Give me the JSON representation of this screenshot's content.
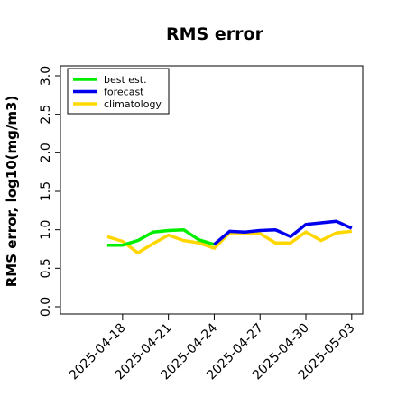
{
  "chart_data": {
    "type": "line",
    "title": "RMS error",
    "xlabel": "",
    "ylabel": "RMS error, log10(mg/m3)",
    "ylim": [
      0.0,
      3.0
    ],
    "yticks": [
      "0.0",
      "0.5",
      "1.0",
      "1.5",
      "2.0",
      "2.5",
      "3.0"
    ],
    "xtick_labels": [
      {
        "label": "2025-04-18",
        "day": 2,
        "color": "#000000"
      },
      {
        "label": "2025-04-21",
        "day": 5,
        "color": "#000000"
      },
      {
        "label": "2025-04-24",
        "day": 8,
        "color": "#008000"
      },
      {
        "label": "2025-04-27",
        "day": 11,
        "color": "#000000"
      },
      {
        "label": "2025-04-30",
        "day": 14,
        "color": "#000000"
      },
      {
        "label": "2025-05-03",
        "day": 17,
        "color": "#000000"
      }
    ],
    "grid": false,
    "legend_position": "top-left",
    "series": [
      {
        "name": "best est.",
        "color": "#00ee00",
        "x": [
          "2025-04-17",
          "2025-04-18",
          "2025-04-19",
          "2025-04-20",
          "2025-04-21",
          "2025-04-22",
          "2025-04-23",
          "2025-04-24"
        ],
        "values": [
          0.8,
          0.8,
          0.86,
          0.97,
          0.99,
          1.0,
          0.87,
          0.81
        ]
      },
      {
        "name": "forecast",
        "color": "#0000ee",
        "x": [
          "2025-04-24",
          "2025-04-25",
          "2025-04-26",
          "2025-04-27",
          "2025-04-28",
          "2025-04-29",
          "2025-04-30",
          "2025-05-01",
          "2025-05-02",
          "2025-05-03"
        ],
        "values": [
          0.81,
          0.98,
          0.97,
          0.99,
          1.0,
          0.91,
          1.07,
          1.09,
          1.11,
          1.02
        ]
      },
      {
        "name": "climatology",
        "color": "#ffd700",
        "x": [
          "2025-04-17",
          "2025-04-18",
          "2025-04-19",
          "2025-04-20",
          "2025-04-21",
          "2025-04-22",
          "2025-04-23",
          "2025-04-24",
          "2025-04-25",
          "2025-04-26",
          "2025-04-27",
          "2025-04-28",
          "2025-04-29",
          "2025-04-30",
          "2025-05-01",
          "2025-05-02",
          "2025-05-03"
        ],
        "values": [
          0.91,
          0.85,
          0.7,
          0.82,
          0.93,
          0.86,
          0.83,
          0.76,
          0.96,
          0.96,
          0.95,
          0.83,
          0.83,
          0.97,
          0.86,
          0.96,
          0.98
        ]
      }
    ]
  }
}
